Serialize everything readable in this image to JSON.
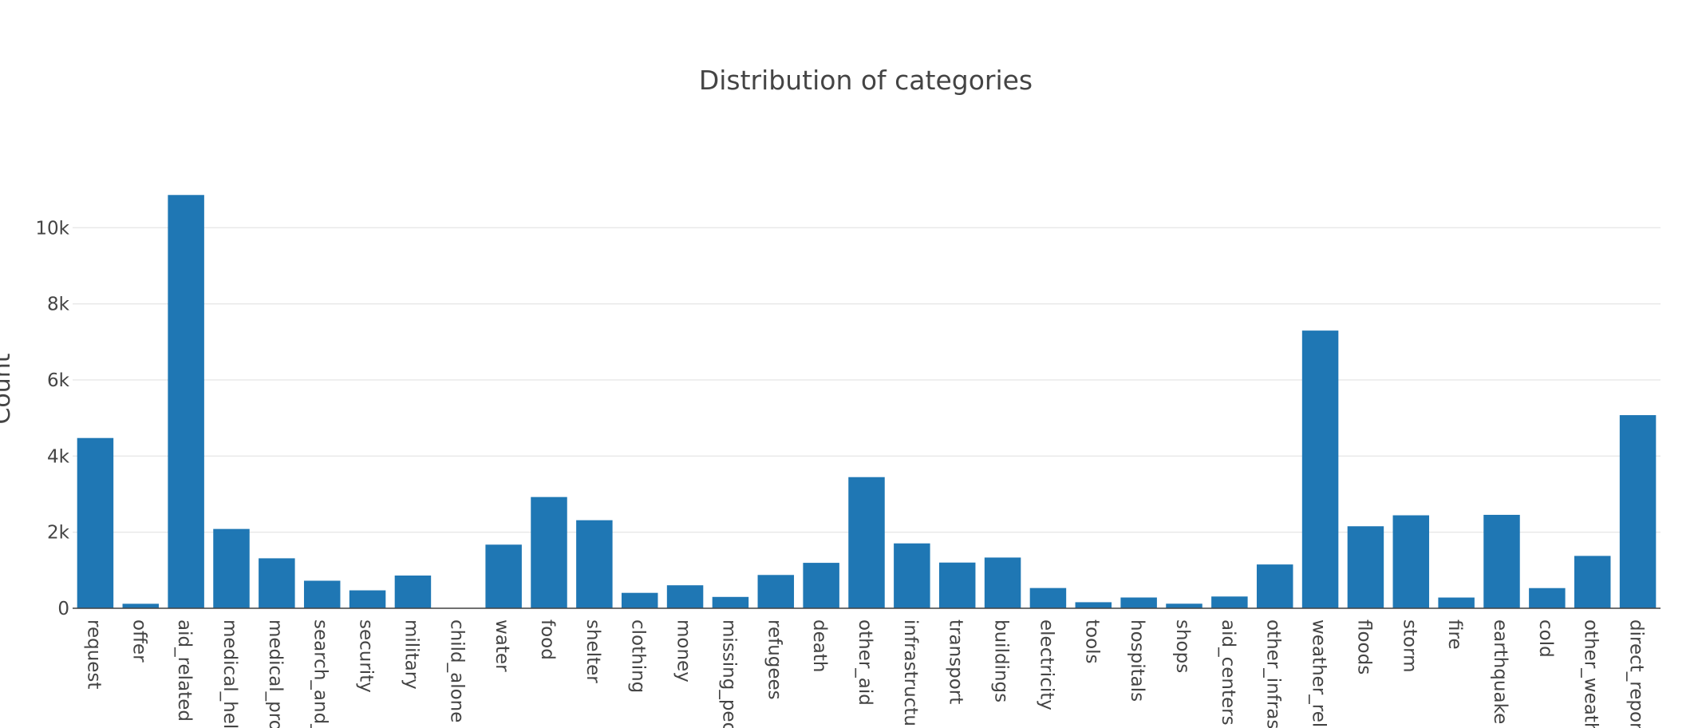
{
  "chart_data": {
    "type": "bar",
    "title": "Distribution of categories",
    "y_label": "Count",
    "categories": [
      "request",
      "offer",
      "aid_related",
      "medical_hel",
      "medical_pro",
      "search_and_",
      "security",
      "military",
      "child_alone",
      "water",
      "food",
      "shelter",
      "clothing",
      "money",
      "missing_peo",
      "refugees",
      "death",
      "other_aid",
      "infrastructur",
      "transport",
      "buildings",
      "electricity",
      "tools",
      "hospitals",
      "shops",
      "aid_centers",
      "other_infras",
      "weather_rel",
      "floods",
      "storm",
      "fire",
      "earthquake",
      "cold",
      "other_weath",
      "direct_repor"
    ],
    "values": [
      4474,
      118,
      10860,
      2084,
      1313,
      724,
      471,
      860,
      0,
      1672,
      2923,
      2314,
      405,
      604,
      298,
      875,
      1194,
      3446,
      1705,
      1201,
      1333,
      532,
      159,
      283,
      120,
      309,
      1151,
      7297,
      2155,
      2443,
      282,
      2455,
      530,
      1376,
      5075
    ],
    "color": "#1f77b4",
    "ylim": [
      0,
      11432
    ],
    "yticks": [
      0,
      {
        "value": 2000,
        "label": "2k"
      },
      {
        "value": 4000,
        "label": "4k"
      },
      {
        "value": 6000,
        "label": "6k"
      },
      {
        "value": 8000,
        "label": "8k"
      },
      {
        "value": 10000,
        "label": "10k"
      }
    ],
    "grid": true
  }
}
